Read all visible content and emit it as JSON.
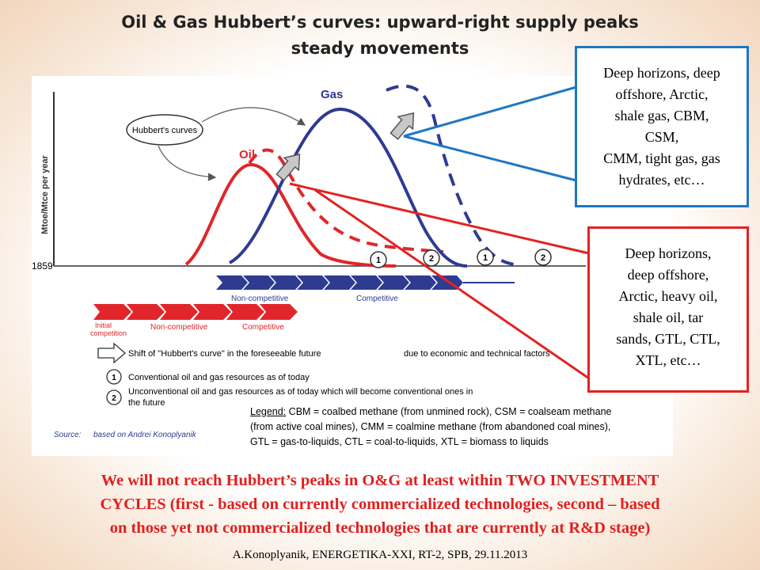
{
  "slide": {
    "title_line1": "Oil & Gas Hubbert’s curves: upward-right supply peaks",
    "title_line2": "steady movements",
    "callout_gas": {
      "lines": [
        "Deep horizons, deep",
        "offshore, Arctic,",
        "shale gas, CBM,",
        "CSM,",
        "CMM, tight gas, gas",
        "hydrates, etc…"
      ],
      "border_color": "#1f77c4"
    },
    "callout_oil": {
      "lines": [
        "Deep horizons,",
        "deep offshore,",
        "Arctic, heavy oil,",
        "shale oil, tar",
        "sands, GTL, CTL,",
        "XTL, etc…"
      ],
      "border_color": "#e32222"
    },
    "legend": {
      "label": "Legend:",
      "text_line1": " CBM = coalbed methane (from unmined rock), CSM = coalseam methane",
      "text_line2": "(from active coal mines), CMM = coalmine methane (from abandoned coal mines),",
      "text_line3": "GTL = gas-to-liquids, CTL = coal-to-liquids, XTL = biomass to liquids"
    },
    "conclusion": {
      "line1": "We will not reach Hubbert’s peaks in O&G at least within TWO INVESTMENT",
      "line2": "CYCLES (first - based on currently commercialized technologies,  second – based",
      "line3": "on those yet not commercialized technologies that are currently at R&D stage)"
    },
    "footer": "A.Konoplyanik, ENERGETIKA-XXI, RT-2, SPB, 29.11.2013"
  },
  "figure": {
    "bubble_label": "Hubbert's curves",
    "oil_label": "Oil",
    "gas_label": "Gas",
    "y_axis_label": "Mtoe/Mtce per year",
    "start_year": "1859",
    "marker_1": "1",
    "marker_2": "2",
    "gas_arrow_label": "Gas",
    "gas_stage_noncompetitive": "Non-competitive",
    "gas_stage_competitive": "Competitive",
    "oil_stage_initial_l1": "Initial",
    "oil_stage_initial_l2": "competition",
    "oil_stage_noncompetitive": "Non-competitive",
    "oil_stage_competitive": "Competitive",
    "shift_text": "Shift of \"Hubbert's curve\" in the foreseeable future",
    "shift_reason": "due to economic and technical factors",
    "note_1": "Conventional oil and gas resources as of today",
    "note_2_l1": "Unconventional oil and gas resources as of today which will become conventional ones in",
    "note_2_l2": "the future",
    "source_label": "Source:",
    "source_text": "based on Andrei Konoplyanik",
    "oil_color": "#e0262a",
    "gas_color": "#2e3b91"
  }
}
